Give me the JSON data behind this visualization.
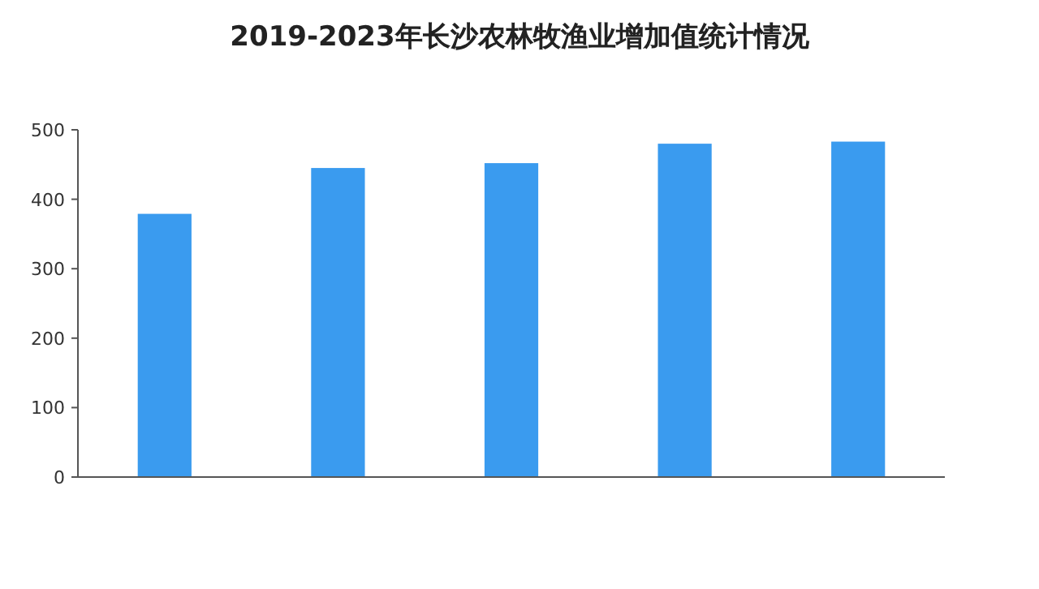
{
  "chart_data": {
    "type": "bar",
    "title": "2019-2023年长沙农林牧渔业增加值统计情况",
    "categories": [
      null,
      null,
      null,
      null,
      null
    ],
    "values": [
      379,
      445,
      452,
      480,
      483
    ],
    "color": "#3a9bef",
    "ylim": [
      0,
      500
    ],
    "yticks": [
      0,
      100,
      200,
      300,
      400,
      500
    ],
    "grid": false
  }
}
